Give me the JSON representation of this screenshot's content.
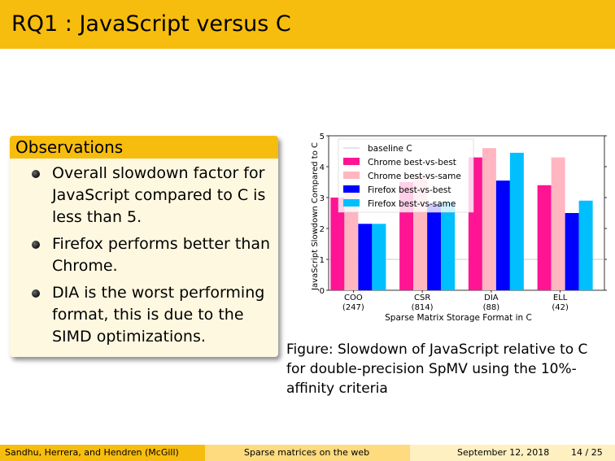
{
  "header": {
    "title": "RQ1 : JavaScript versus C"
  },
  "observations": {
    "title": "Observations",
    "items": [
      "Overall slowdown factor for JavaScript compared to C is less than 5.",
      "Firefox performs better than Chrome.",
      "DIA is the worst performing format, this is due to the SIMD optimizations."
    ]
  },
  "figure": {
    "caption": "Figure: Slowdown of JavaScript relative to C for double-precision SpMV using the 10%-affinity criteria"
  },
  "chart_data": {
    "type": "bar",
    "categories": [
      "COO\n(247)",
      "CSR\n(814)",
      "DIA\n(88)",
      "ELL\n(42)"
    ],
    "category_names": [
      "COO",
      "CSR",
      "DIA",
      "ELL"
    ],
    "category_counts": [
      "(247)",
      "(814)",
      "(88)",
      "(42)"
    ],
    "xlabel": "Sparse Matrix Storage Format in C",
    "ylabel": "JavaScript Slowdown Compared to C",
    "ylim": [
      0,
      5
    ],
    "yticks": [
      0,
      1,
      2,
      3,
      4,
      5
    ],
    "baseline": 1,
    "legend_placement": "top-left",
    "series": [
      {
        "name": "baseline C",
        "color": "#c8c8c8",
        "line": true
      },
      {
        "name": "Chrome best-vs-best",
        "color": "#ff1493",
        "values": [
          3.0,
          3.5,
          4.3,
          3.4
        ]
      },
      {
        "name": "Chrome best-vs-same",
        "color": "#ffb6c1",
        "values": [
          3.2,
          3.7,
          4.6,
          4.3
        ]
      },
      {
        "name": "Firefox best-vs-best",
        "color": "#0000ff",
        "values": [
          2.15,
          2.8,
          3.55,
          2.5
        ]
      },
      {
        "name": "Firefox best-vs-same",
        "color": "#00bfff",
        "values": [
          2.15,
          2.85,
          4.45,
          2.9
        ]
      }
    ]
  },
  "footer": {
    "authors": "Sandhu, Herrera, and Hendren  (McGill)",
    "talk": "Sparse matrices on the web",
    "date": "September 12, 2018",
    "page": "14 / 25"
  }
}
